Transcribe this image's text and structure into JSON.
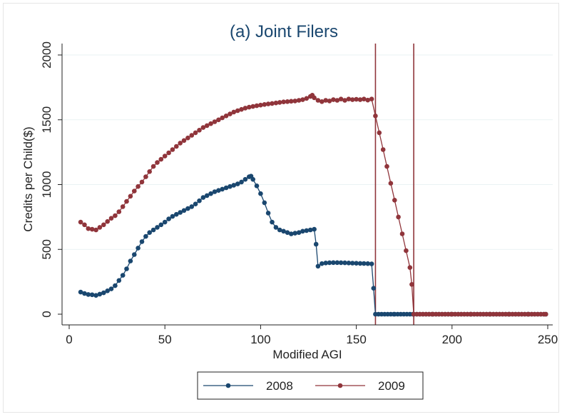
{
  "chart_data": {
    "type": "line",
    "title": "(a) Joint Filers",
    "xlabel": "Modified AGI",
    "ylabel": "Credits per Child($)",
    "xlim": [
      0,
      250
    ],
    "ylim": [
      0,
      2000
    ],
    "xticks": [
      0,
      50,
      100,
      150,
      200,
      250
    ],
    "yticks": [
      0,
      500,
      1000,
      1500,
      2000
    ],
    "grid": "horizontal",
    "legend_position": "bottom",
    "vlines": [
      160,
      180
    ],
    "vline_color": "#90353b",
    "series": [
      {
        "name": "2008",
        "color": "#1a476f",
        "points": [
          [
            6,
            170
          ],
          [
            8,
            160
          ],
          [
            10,
            152
          ],
          [
            12,
            150
          ],
          [
            14,
            145
          ],
          [
            16,
            155
          ],
          [
            18,
            165
          ],
          [
            20,
            180
          ],
          [
            22,
            195
          ],
          [
            24,
            220
          ],
          [
            26,
            260
          ],
          [
            28,
            300
          ],
          [
            30,
            350
          ],
          [
            32,
            410
          ],
          [
            34,
            460
          ],
          [
            36,
            510
          ],
          [
            38,
            560
          ],
          [
            40,
            600
          ],
          [
            42,
            630
          ],
          [
            44,
            650
          ],
          [
            46,
            670
          ],
          [
            48,
            690
          ],
          [
            50,
            710
          ],
          [
            52,
            735
          ],
          [
            54,
            755
          ],
          [
            56,
            770
          ],
          [
            58,
            785
          ],
          [
            60,
            800
          ],
          [
            62,
            815
          ],
          [
            64,
            830
          ],
          [
            66,
            850
          ],
          [
            68,
            875
          ],
          [
            70,
            900
          ],
          [
            72,
            915
          ],
          [
            74,
            930
          ],
          [
            76,
            945
          ],
          [
            78,
            955
          ],
          [
            80,
            965
          ],
          [
            82,
            975
          ],
          [
            84,
            985
          ],
          [
            86,
            995
          ],
          [
            88,
            1005
          ],
          [
            90,
            1020
          ],
          [
            92,
            1040
          ],
          [
            94,
            1060
          ],
          [
            95,
            1065
          ],
          [
            96,
            1040
          ],
          [
            98,
            990
          ],
          [
            100,
            930
          ],
          [
            102,
            860
          ],
          [
            104,
            780
          ],
          [
            106,
            710
          ],
          [
            108,
            670
          ],
          [
            110,
            650
          ],
          [
            112,
            640
          ],
          [
            114,
            630
          ],
          [
            116,
            620
          ],
          [
            118,
            625
          ],
          [
            120,
            630
          ],
          [
            122,
            640
          ],
          [
            124,
            645
          ],
          [
            126,
            650
          ],
          [
            128,
            655
          ],
          [
            129,
            540
          ],
          [
            130,
            370
          ],
          [
            132,
            390
          ],
          [
            134,
            395
          ],
          [
            136,
            397
          ],
          [
            138,
            398
          ],
          [
            140,
            398
          ],
          [
            142,
            397
          ],
          [
            144,
            396
          ],
          [
            146,
            395
          ],
          [
            148,
            394
          ],
          [
            150,
            393
          ],
          [
            152,
            392
          ],
          [
            154,
            391
          ],
          [
            156,
            390
          ],
          [
            158,
            388
          ],
          [
            159,
            200
          ],
          [
            160,
            0
          ],
          [
            170,
            0
          ],
          [
            180,
            0
          ],
          [
            190,
            0
          ],
          [
            200,
            0
          ],
          [
            210,
            0
          ],
          [
            220,
            0
          ],
          [
            230,
            0
          ],
          [
            240,
            0
          ],
          [
            249,
            0
          ]
        ]
      },
      {
        "name": "2009",
        "color": "#90353b",
        "points": [
          [
            6,
            710
          ],
          [
            8,
            690
          ],
          [
            10,
            660
          ],
          [
            12,
            655
          ],
          [
            14,
            650
          ],
          [
            16,
            670
          ],
          [
            18,
            690
          ],
          [
            20,
            715
          ],
          [
            22,
            740
          ],
          [
            24,
            760
          ],
          [
            26,
            790
          ],
          [
            28,
            830
          ],
          [
            30,
            870
          ],
          [
            32,
            910
          ],
          [
            34,
            950
          ],
          [
            36,
            985
          ],
          [
            38,
            1020
          ],
          [
            40,
            1060
          ],
          [
            42,
            1100
          ],
          [
            44,
            1140
          ],
          [
            46,
            1170
          ],
          [
            48,
            1195
          ],
          [
            50,
            1220
          ],
          [
            52,
            1245
          ],
          [
            54,
            1270
          ],
          [
            56,
            1295
          ],
          [
            58,
            1320
          ],
          [
            60,
            1340
          ],
          [
            62,
            1360
          ],
          [
            64,
            1380
          ],
          [
            66,
            1400
          ],
          [
            68,
            1420
          ],
          [
            70,
            1440
          ],
          [
            72,
            1455
          ],
          [
            74,
            1470
          ],
          [
            76,
            1485
          ],
          [
            78,
            1500
          ],
          [
            80,
            1515
          ],
          [
            82,
            1530
          ],
          [
            84,
            1545
          ],
          [
            86,
            1560
          ],
          [
            88,
            1570
          ],
          [
            90,
            1580
          ],
          [
            92,
            1590
          ],
          [
            94,
            1597
          ],
          [
            96,
            1603
          ],
          [
            98,
            1608
          ],
          [
            100,
            1613
          ],
          [
            102,
            1618
          ],
          [
            104,
            1622
          ],
          [
            106,
            1626
          ],
          [
            108,
            1630
          ],
          [
            110,
            1634
          ],
          [
            112,
            1638
          ],
          [
            114,
            1640
          ],
          [
            116,
            1643
          ],
          [
            118,
            1645
          ],
          [
            120,
            1650
          ],
          [
            122,
            1655
          ],
          [
            124,
            1665
          ],
          [
            126,
            1680
          ],
          [
            127,
            1690
          ],
          [
            128,
            1670
          ],
          [
            130,
            1650
          ],
          [
            132,
            1640
          ],
          [
            134,
            1650
          ],
          [
            136,
            1645
          ],
          [
            138,
            1655
          ],
          [
            140,
            1650
          ],
          [
            142,
            1660
          ],
          [
            144,
            1650
          ],
          [
            146,
            1660
          ],
          [
            148,
            1655
          ],
          [
            150,
            1658
          ],
          [
            152,
            1655
          ],
          [
            154,
            1660
          ],
          [
            156,
            1652
          ],
          [
            158,
            1660
          ],
          [
            160,
            1530
          ],
          [
            162,
            1400
          ],
          [
            164,
            1270
          ],
          [
            166,
            1140
          ],
          [
            168,
            1010
          ],
          [
            170,
            880
          ],
          [
            172,
            750
          ],
          [
            174,
            620
          ],
          [
            176,
            490
          ],
          [
            178,
            360
          ],
          [
            179,
            230
          ],
          [
            180,
            0
          ],
          [
            190,
            0
          ],
          [
            200,
            0
          ],
          [
            210,
            0
          ],
          [
            220,
            0
          ],
          [
            230,
            0
          ],
          [
            240,
            0
          ],
          [
            249,
            0
          ]
        ]
      }
    ]
  }
}
